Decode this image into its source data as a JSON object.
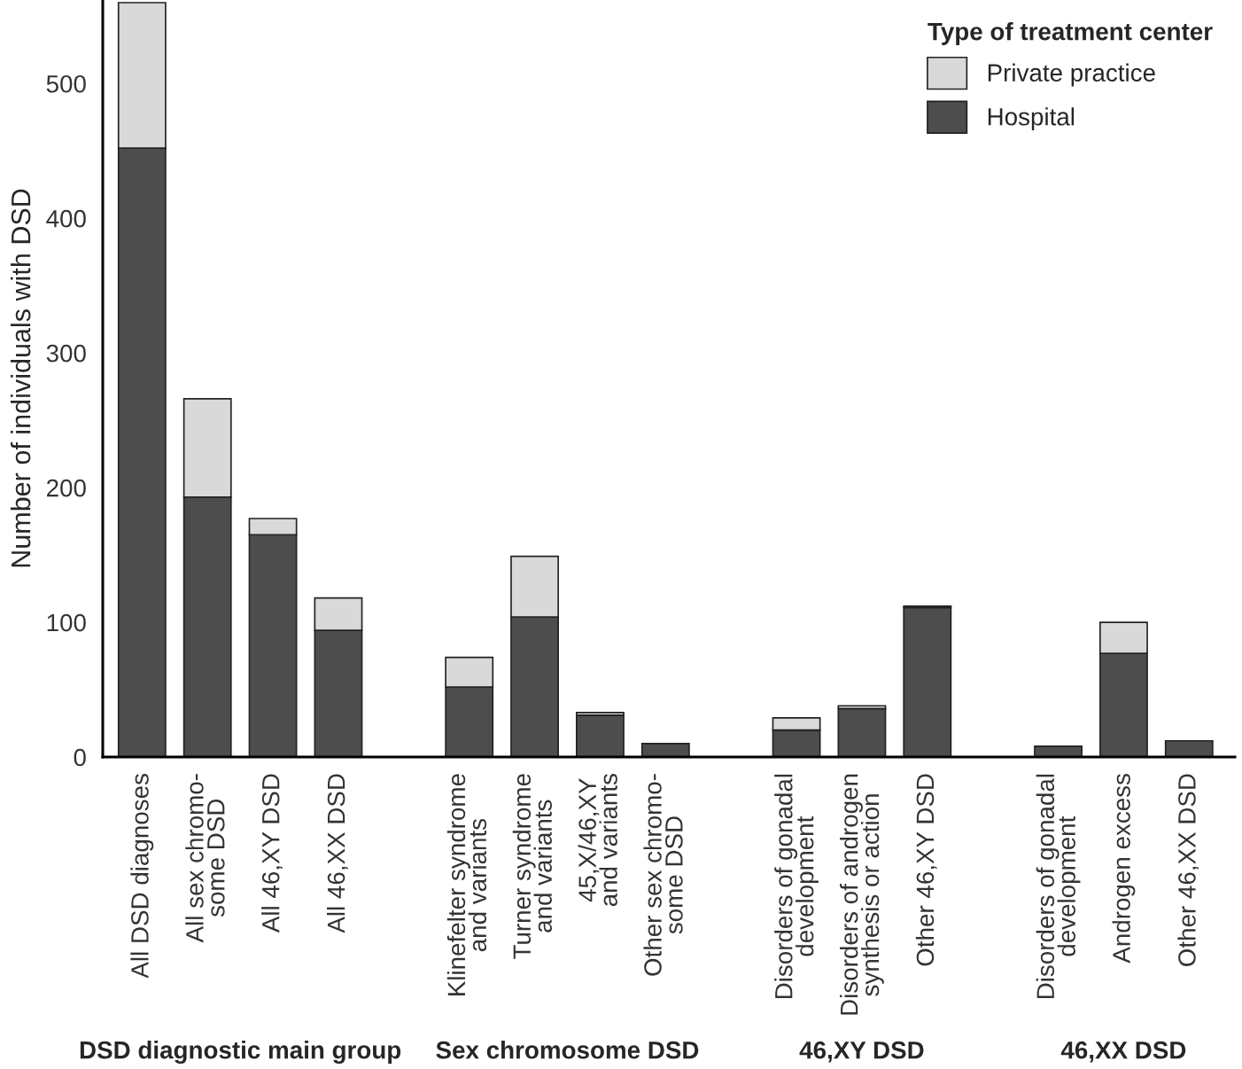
{
  "chart_data": {
    "type": "bar",
    "stacked": true,
    "ylabel": "Number of individuals with DSD",
    "legend_title": "Type of treatment center",
    "legend": "top right",
    "grid": false,
    "categories": [
      "All DSD diagnoses",
      "All sex chromo-\nsome DSD",
      "All 46,XY DSD",
      "All 46,XX DSD",
      null,
      "Klinefelter syndrome\nand variants",
      "Turner syndrome\nand variants",
      "45,X/46,XY\nand variants",
      "Other sex chromo-\nsome DSD",
      null,
      "Disorders of gonadal\ndevelopment",
      "Disorders of androgen\nsynthesis or action",
      "Other 46,XY DSD",
      null,
      "Disorders of gonadal\ndevelopment",
      "Androgen excess",
      "Other 46,XX DSD"
    ],
    "series": [
      {
        "name": "Hospital",
        "color": "#4d4d4d",
        "values": [
          452,
          193,
          165,
          94,
          null,
          52,
          104,
          31,
          10,
          null,
          20,
          36,
          111,
          null,
          8,
          77,
          12
        ]
      },
      {
        "name": "Private practice",
        "color": "#d9d9d9",
        "values": [
          108,
          73,
          12,
          24,
          null,
          22,
          45,
          2,
          null,
          null,
          9,
          2,
          1,
          null,
          null,
          23,
          0
        ]
      }
    ],
    "ylim": [
      0,
      562
    ],
    "yticks": [
      0,
      100,
      200,
      300,
      400,
      500
    ],
    "annotations": [
      "DSD diagnostic main group",
      "Sex chromosome DSD",
      "46,XY DSD",
      "46,XX DSD"
    ]
  }
}
